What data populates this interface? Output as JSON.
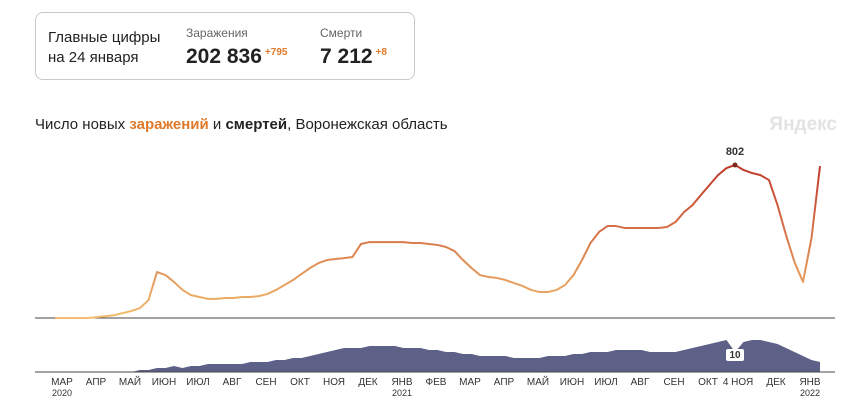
{
  "header": {
    "title": "Главные цифры",
    "date": "на 24 января",
    "cases": {
      "label": "Заражения",
      "value": "202 836",
      "delta": "+795"
    },
    "deaths": {
      "label": "Смерти",
      "value": "7 212",
      "delta": "+8"
    }
  },
  "brand": "Яндекс",
  "chart_data": {
    "type": "line-area",
    "title_parts": [
      "Число новых ",
      "заражений",
      " и ",
      "смертей",
      ", Воронежская область"
    ],
    "categories": [
      "МАР",
      null,
      null,
      null,
      "АПР",
      null,
      null,
      null,
      "МАЙ",
      null,
      null,
      null,
      "ИЮН",
      null,
      null,
      null,
      "ИЮЛ",
      null,
      null,
      null,
      "АВГ",
      null,
      null,
      null,
      "СЕН",
      null,
      null,
      null,
      "ОКТ",
      null,
      null,
      null,
      "НОЯ",
      null,
      null,
      null,
      "ДЕК",
      null,
      null,
      null,
      "ЯНВ",
      null,
      null,
      null,
      "ФЕВ",
      null,
      null,
      null,
      "МАР",
      null,
      null,
      null,
      "АПР",
      null,
      null,
      null,
      "МАЙ",
      null,
      null,
      null,
      "ИЮН",
      null,
      null,
      null,
      "ИЮЛ",
      null,
      null,
      null,
      "АВГ",
      null,
      null,
      null,
      "СЕН",
      null,
      null,
      null,
      "ОКТ",
      null,
      null,
      null,
      "НОЯ",
      null,
      null,
      null,
      "ДЕК",
      null,
      null,
      null,
      "ЯНВ",
      null,
      null
    ],
    "years": [
      "2020",
      null,
      null,
      null,
      null,
      null,
      null,
      null,
      null,
      null,
      null,
      null,
      null,
      null,
      null,
      null,
      null,
      null,
      null,
      null,
      null,
      null,
      null,
      null,
      null,
      null,
      null,
      null,
      null,
      null,
      null,
      null,
      null,
      null,
      null,
      null,
      null,
      null,
      null,
      null,
      "2021",
      null,
      null,
      null,
      null,
      null,
      null,
      null,
      null,
      null,
      null,
      null,
      null,
      null,
      null,
      null,
      null,
      null,
      null,
      null,
      null,
      null,
      null,
      null,
      null,
      null,
      null,
      null,
      null,
      null,
      null,
      null,
      null,
      null,
      null,
      null,
      null,
      null,
      null,
      null,
      null,
      null,
      null,
      null,
      null,
      null,
      null,
      null,
      "2022",
      null,
      null
    ],
    "series": [
      {
        "name": "заражений",
        "colors": [
          "#f2bd6e",
          "#c0392b"
        ],
        "values": [
          0,
          0,
          0,
          0,
          0,
          5,
          10,
          15,
          26,
          37,
          52,
          94,
          241,
          225,
          189,
          147,
          120,
          110,
          100,
          100,
          105,
          105,
          110,
          110,
          115,
          126,
          147,
          173,
          199,
          231,
          262,
          288,
          304,
          309,
          314,
          320,
          388,
          398,
          398,
          398,
          398,
          398,
          393,
          393,
          388,
          383,
          372,
          351,
          304,
          262,
          225,
          215,
          210,
          199,
          183,
          168,
          147,
          136,
          136,
          147,
          173,
          225,
          304,
          393,
          451,
          482,
          482,
          472,
          472,
          472,
          472,
          472,
          477,
          503,
          555,
          592,
          645,
          697,
          749,
          786,
          802,
          776,
          760,
          749,
          723,
          592,
          435,
          293,
          189,
          419,
          796
        ]
      },
      {
        "name": "смертей",
        "color": "#5d6188",
        "values": [
          0,
          0,
          0,
          0,
          0,
          0,
          0,
          0,
          0,
          0,
          1,
          1,
          2,
          2,
          3,
          2,
          3,
          3,
          4,
          4,
          4,
          4,
          4,
          5,
          5,
          5,
          6,
          6,
          7,
          7,
          8,
          9,
          10,
          11,
          12,
          12,
          12,
          13,
          13,
          13,
          13,
          12,
          12,
          12,
          11,
          11,
          10,
          10,
          9,
          9,
          8,
          8,
          8,
          8,
          7,
          7,
          7,
          7,
          8,
          8,
          8,
          9,
          9,
          10,
          10,
          10,
          11,
          11,
          11,
          11,
          10,
          10,
          10,
          10,
          11,
          12,
          13,
          14,
          15,
          16,
          10,
          15,
          16,
          16,
          15,
          14,
          12,
          10,
          8,
          6,
          5
        ]
      }
    ],
    "highlight": {
      "date": "4 НОЯ",
      "value": 802,
      "deaths": 10
    }
  }
}
